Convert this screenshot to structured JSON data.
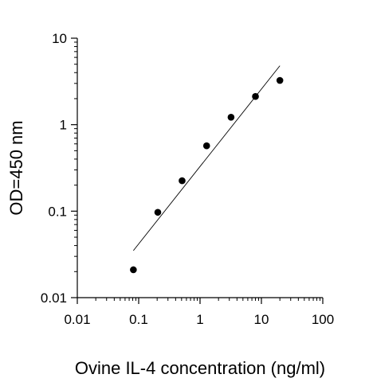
{
  "chart_data": {
    "type": "scatter",
    "title": "",
    "xlabel": "Ovine IL-4 concentration (ng/ml)",
    "ylabel": "OD=450 nm",
    "xscale": "log",
    "yscale": "log",
    "xlim": [
      0.01,
      100
    ],
    "ylim": [
      0.01,
      10
    ],
    "x_ticks": [
      0.01,
      0.1,
      1,
      10,
      100
    ],
    "x_tick_labels": [
      "0.01",
      "0.1",
      "1",
      "10",
      "100"
    ],
    "y_ticks": [
      0.01,
      0.1,
      1,
      10
    ],
    "y_tick_labels": [
      "0.01",
      "0.1",
      "1",
      "10"
    ],
    "grid": false,
    "legend": "none",
    "marker_color": "#000000",
    "series": [
      {
        "points": [
          {
            "x": 0.082,
            "y": 0.021
          },
          {
            "x": 0.205,
            "y": 0.097
          },
          {
            "x": 0.51,
            "y": 0.225
          },
          {
            "x": 1.28,
            "y": 0.57
          },
          {
            "x": 3.2,
            "y": 1.22
          },
          {
            "x": 8.0,
            "y": 2.12
          },
          {
            "x": 20.0,
            "y": 3.25
          }
        ]
      }
    ],
    "fit_line": {
      "start": {
        "x": 0.082,
        "y": 0.035
      },
      "end": {
        "x": 20.0,
        "y": 4.8
      }
    }
  }
}
